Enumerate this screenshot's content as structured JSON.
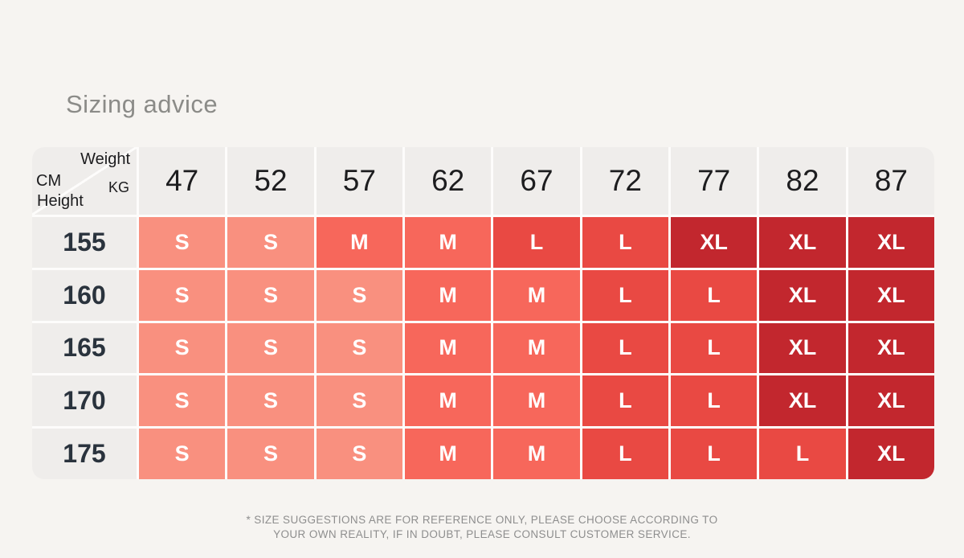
{
  "title": "Sizing advice",
  "table": {
    "corner": {
      "weight_label": "Weight",
      "kg_label": "KG",
      "cm_label": "CM",
      "height_label": "Height"
    },
    "weights": [
      "47",
      "52",
      "57",
      "62",
      "67",
      "72",
      "77",
      "82",
      "87"
    ],
    "rows": [
      {
        "height": "155",
        "sizes": [
          "S",
          "S",
          "M",
          "M",
          "L",
          "L",
          "XL",
          "XL",
          "XL"
        ]
      },
      {
        "height": "160",
        "sizes": [
          "S",
          "S",
          "S",
          "M",
          "M",
          "L",
          "L",
          "XL",
          "XL"
        ]
      },
      {
        "height": "165",
        "sizes": [
          "S",
          "S",
          "S",
          "M",
          "M",
          "L",
          "L",
          "XL",
          "XL"
        ]
      },
      {
        "height": "170",
        "sizes": [
          "S",
          "S",
          "S",
          "M",
          "M",
          "L",
          "L",
          "XL",
          "XL"
        ]
      },
      {
        "height": "175",
        "sizes": [
          "S",
          "S",
          "S",
          "M",
          "M",
          "L",
          "L",
          "L",
          "XL"
        ]
      }
    ],
    "size_colors": {
      "S": "#F9907F",
      "M": "#F7675B",
      "L": "#E94943",
      "XL": "#C2272E"
    },
    "label_cell_color": "#EFEDEB"
  },
  "footnote": {
    "line1": "* SIZE SUGGESTIONS ARE FOR REFERENCE ONLY, PLEASE CHOOSE ACCORDING TO",
    "line2": "YOUR OWN REALITY, IF IN DOUBT, PLEASE CONSULT CUSTOMER SERVICE."
  }
}
